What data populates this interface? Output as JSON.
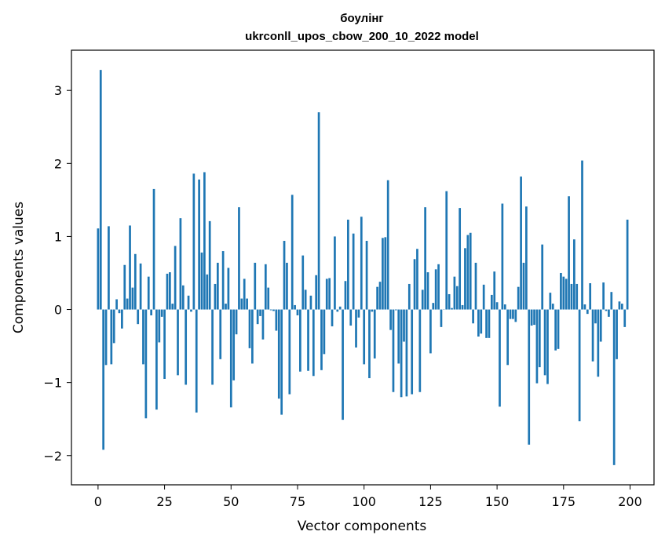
{
  "chart_data": {
    "type": "bar",
    "title": "боулінг",
    "subtitle": "ukrconll_upos_cbow_200_10_2022 model",
    "xlabel": "Vector components",
    "ylabel": "Components values",
    "xlim": [
      -10,
      209
    ],
    "ylim": [
      -2.4,
      3.55
    ],
    "xticks": [
      0,
      25,
      50,
      75,
      100,
      125,
      150,
      175,
      200
    ],
    "yticks": [
      -2,
      -1,
      0,
      1,
      2,
      3
    ],
    "grid": false,
    "legend": "none",
    "bar_color": "#1f77b4",
    "series": [
      {
        "values": [
          1.11,
          3.28,
          -1.92,
          -0.76,
          1.14,
          -0.75,
          -0.46,
          0.14,
          -0.05,
          -0.26,
          0.61,
          0.15,
          1.15,
          0.3,
          0.76,
          -0.2,
          0.63,
          -0.75,
          -1.49,
          0.45,
          -0.08,
          1.65,
          -1.37,
          -0.45,
          -0.1,
          -0.95,
          0.49,
          0.51,
          0.08,
          0.87,
          -0.9,
          1.25,
          0.33,
          -1.03,
          0.19,
          -0.03,
          1.86,
          -1.41,
          1.78,
          0.78,
          1.88,
          0.48,
          1.21,
          -1.03,
          0.35,
          0.64,
          -0.68,
          0.8,
          0.08,
          0.57,
          -1.34,
          -0.97,
          -0.34,
          1.4,
          0.15,
          0.42,
          0.15,
          -0.53,
          -0.74,
          0.64,
          -0.2,
          -0.09,
          -0.41,
          0.62,
          0.3,
          -0.01,
          -0.02,
          -0.29,
          -1.22,
          -1.44,
          0.94,
          0.64,
          -1.16,
          1.57,
          0.06,
          -0.08,
          -0.85,
          0.74,
          0.27,
          -0.84,
          0.19,
          -0.91,
          0.47,
          2.7,
          -0.83,
          -0.61,
          0.42,
          0.43,
          -0.23,
          1.0,
          -0.03,
          0.04,
          -1.51,
          0.39,
          1.23,
          -0.22,
          1.04,
          -0.52,
          -0.11,
          1.27,
          -0.75,
          0.94,
          -0.94,
          -0.03,
          -0.67,
          0.31,
          0.38,
          0.98,
          0.99,
          1.77,
          -0.28,
          -1.13,
          -0.01,
          -0.74,
          -1.2,
          -0.44,
          -1.19,
          0.35,
          -1.16,
          0.69,
          0.83,
          -1.13,
          0.27,
          1.4,
          0.51,
          -0.6,
          0.09,
          0.55,
          0.62,
          -0.24,
          0.0,
          1.62,
          0.21,
          0.02,
          0.45,
          0.32,
          1.39,
          0.06,
          0.84,
          1.02,
          1.05,
          -0.19,
          0.64,
          -0.37,
          -0.33,
          0.34,
          -0.39,
          -0.39,
          0.2,
          0.52,
          0.1,
          -1.33,
          1.45,
          0.07,
          -0.76,
          -0.13,
          -0.13,
          -0.17,
          0.31,
          1.82,
          0.64,
          1.41,
          -1.85,
          -0.22,
          -0.21,
          -1.01,
          -0.79,
          0.89,
          -0.9,
          -1.02,
          0.23,
          0.08,
          -0.56,
          -0.54,
          0.5,
          0.45,
          0.42,
          1.55,
          0.35,
          0.96,
          0.35,
          -1.53,
          2.04,
          0.07,
          -0.06,
          0.36,
          -0.71,
          -0.19,
          -0.92,
          -0.44,
          0.37,
          -0.02,
          -0.1,
          0.24,
          -2.13,
          -0.68,
          0.11,
          0.08,
          -0.24,
          1.23
        ]
      }
    ]
  }
}
